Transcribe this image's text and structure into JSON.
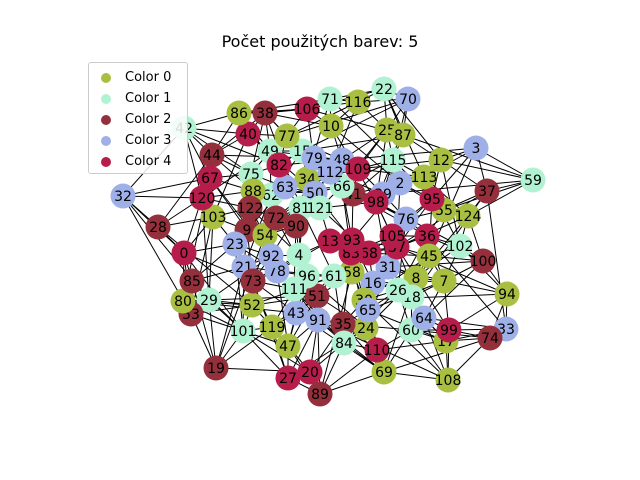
{
  "title": "Počet použitých barev: 5",
  "colors": {
    "c0": "#a9bf41",
    "c1": "#b0f2d2",
    "c2": "#94303c",
    "c3": "#9fb0e8",
    "c4": "#b61d4a"
  },
  "legend": [
    {
      "label": "Color 0",
      "key": "c0"
    },
    {
      "label": "Color 1",
      "key": "c1"
    },
    {
      "label": "Color 2",
      "key": "c2"
    },
    {
      "label": "Color 3",
      "key": "c3"
    },
    {
      "label": "Color 4",
      "key": "c4"
    }
  ],
  "nodes": [
    {
      "id": "0",
      "c": "c4"
    },
    {
      "id": "2",
      "c": "c3"
    },
    {
      "id": "3",
      "c": "c3"
    },
    {
      "id": "4",
      "c": "c1"
    },
    {
      "id": "7",
      "c": "c0"
    },
    {
      "id": "8",
      "c": "c0"
    },
    {
      "id": "9",
      "c": "c2"
    },
    {
      "id": "10",
      "c": "c0"
    },
    {
      "id": "12",
      "c": "c0"
    },
    {
      "id": "13",
      "c": "c4"
    },
    {
      "id": "15",
      "c": "c1"
    },
    {
      "id": "16",
      "c": "c3"
    },
    {
      "id": "17",
      "c": "c0"
    },
    {
      "id": "18",
      "c": "c1"
    },
    {
      "id": "19",
      "c": "c2"
    },
    {
      "id": "20",
      "c": "c4"
    },
    {
      "id": "21",
      "c": "c3"
    },
    {
      "id": "22",
      "c": "c1"
    },
    {
      "id": "23",
      "c": "c3"
    },
    {
      "id": "24",
      "c": "c0"
    },
    {
      "id": "25",
      "c": "c0"
    },
    {
      "id": "26",
      "c": "c1"
    },
    {
      "id": "27",
      "c": "c4"
    },
    {
      "id": "28",
      "c": "c2"
    },
    {
      "id": "29",
      "c": "c1"
    },
    {
      "id": "30",
      "c": "c0"
    },
    {
      "id": "31",
      "c": "c3"
    },
    {
      "id": "32",
      "c": "c3"
    },
    {
      "id": "33",
      "c": "c3"
    },
    {
      "id": "34",
      "c": "c0"
    },
    {
      "id": "35",
      "c": "c2"
    },
    {
      "id": "36",
      "c": "c4"
    },
    {
      "id": "37",
      "c": "c2"
    },
    {
      "id": "38",
      "c": "c2"
    },
    {
      "id": "39",
      "c": "c3"
    },
    {
      "id": "40",
      "c": "c4"
    },
    {
      "id": "41",
      "c": "c2"
    },
    {
      "id": "42",
      "c": "c1"
    },
    {
      "id": "43",
      "c": "c3"
    },
    {
      "id": "44",
      "c": "c2"
    },
    {
      "id": "45",
      "c": "c0"
    },
    {
      "id": "47",
      "c": "c0"
    },
    {
      "id": "48",
      "c": "c3"
    },
    {
      "id": "49",
      "c": "c1"
    },
    {
      "id": "50",
      "c": "c3"
    },
    {
      "id": "51",
      "c": "c2"
    },
    {
      "id": "52",
      "c": "c0"
    },
    {
      "id": "53",
      "c": "c2"
    },
    {
      "id": "54",
      "c": "c0"
    },
    {
      "id": "55",
      "c": "c0"
    },
    {
      "id": "57",
      "c": "c4"
    },
    {
      "id": "58",
      "c": "c0"
    },
    {
      "id": "59",
      "c": "c1"
    },
    {
      "id": "60",
      "c": "c1"
    },
    {
      "id": "61",
      "c": "c1"
    },
    {
      "id": "62",
      "c": "c1"
    },
    {
      "id": "63",
      "c": "c3"
    },
    {
      "id": "64",
      "c": "c3"
    },
    {
      "id": "65",
      "c": "c3"
    },
    {
      "id": "66",
      "c": "c1"
    },
    {
      "id": "67",
      "c": "c4"
    },
    {
      "id": "68",
      "c": "c4"
    },
    {
      "id": "69",
      "c": "c0"
    },
    {
      "id": "70",
      "c": "c3"
    },
    {
      "id": "71",
      "c": "c1"
    },
    {
      "id": "72",
      "c": "c2"
    },
    {
      "id": "73",
      "c": "c2"
    },
    {
      "id": "74",
      "c": "c2"
    },
    {
      "id": "75",
      "c": "c1"
    },
    {
      "id": "76",
      "c": "c3"
    },
    {
      "id": "77",
      "c": "c0"
    },
    {
      "id": "78",
      "c": "c3"
    },
    {
      "id": "79",
      "c": "c3"
    },
    {
      "id": "80",
      "c": "c0"
    },
    {
      "id": "81",
      "c": "c1"
    },
    {
      "id": "82",
      "c": "c4"
    },
    {
      "id": "83",
      "c": "c4"
    },
    {
      "id": "84",
      "c": "c1"
    },
    {
      "id": "85",
      "c": "c2"
    },
    {
      "id": "86",
      "c": "c0"
    },
    {
      "id": "87",
      "c": "c0"
    },
    {
      "id": "88",
      "c": "c0"
    },
    {
      "id": "89",
      "c": "c2"
    },
    {
      "id": "90",
      "c": "c2"
    },
    {
      "id": "91",
      "c": "c3"
    },
    {
      "id": "92",
      "c": "c3"
    },
    {
      "id": "93",
      "c": "c4"
    },
    {
      "id": "94",
      "c": "c0"
    },
    {
      "id": "95",
      "c": "c4"
    },
    {
      "id": "96",
      "c": "c1"
    },
    {
      "id": "98",
      "c": "c4"
    },
    {
      "id": "99",
      "c": "c4"
    },
    {
      "id": "100",
      "c": "c2"
    },
    {
      "id": "101",
      "c": "c1"
    },
    {
      "id": "102",
      "c": "c1"
    },
    {
      "id": "103",
      "c": "c0"
    },
    {
      "id": "105",
      "c": "c4"
    },
    {
      "id": "106",
      "c": "c4"
    },
    {
      "id": "108",
      "c": "c0"
    },
    {
      "id": "109",
      "c": "c4"
    },
    {
      "id": "110",
      "c": "c4"
    },
    {
      "id": "111",
      "c": "c1"
    },
    {
      "id": "112",
      "c": "c3"
    },
    {
      "id": "113",
      "c": "c0"
    },
    {
      "id": "115",
      "c": "c1"
    },
    {
      "id": "116",
      "c": "c0"
    },
    {
      "id": "119",
      "c": "c0"
    },
    {
      "id": "120",
      "c": "c4"
    },
    {
      "id": "121",
      "c": "c1"
    },
    {
      "id": "122",
      "c": "c2"
    },
    {
      "id": "124",
      "c": "c0"
    }
  ]
}
